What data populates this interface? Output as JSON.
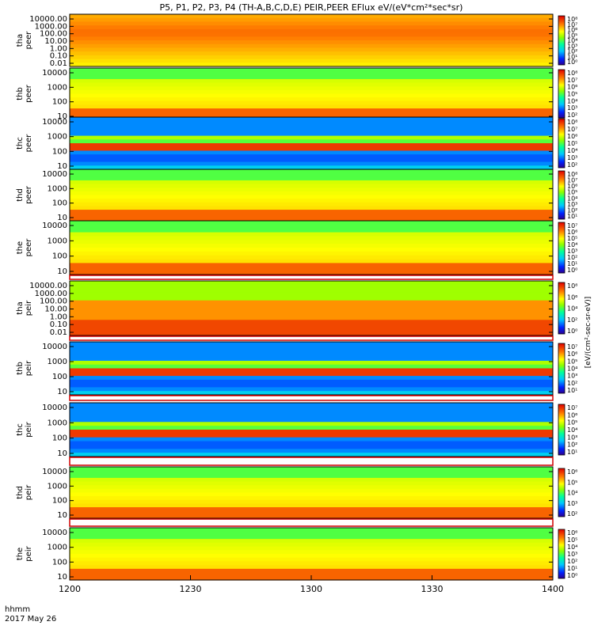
{
  "title": "P5, P1, P2, P3, P4 (TH-A,B,C,D,E) PEIR,PEER EFlux eV/(eV*cm²*sec*sr)",
  "colorbar_label": "[eV/(cm²-sec-sr-eV)]",
  "time_axis": {
    "label": "hhmm",
    "date": "2017 May 26",
    "ticks": [
      "1200",
      "1230",
      "1300",
      "1330",
      "1400"
    ],
    "tick_minutes": [
      0,
      30,
      60,
      90,
      120
    ],
    "range_minutes": [
      0,
      120
    ]
  },
  "chart_data": [
    {
      "type": "heatmap",
      "name": "tha peer",
      "probe": "tha",
      "product": "peer",
      "ylabels": [
        "10000.00",
        "1000.00",
        "100.00",
        "10.00",
        "1.00",
        "0.10",
        "0.01"
      ],
      "cbar": [
        "10⁸",
        "10⁷",
        "10⁶",
        "10⁵",
        "10⁴",
        "10³",
        "10²",
        "10¹",
        "10⁰"
      ],
      "yscale": "log",
      "cmap": "rainbow"
    },
    {
      "type": "heatmap",
      "name": "thb peer",
      "probe": "thb",
      "product": "peer",
      "ylabels": [
        "10000",
        "1000",
        "100",
        "10"
      ],
      "cbar": [
        "10⁸",
        "10⁷",
        "10⁶",
        "10⁵",
        "10⁴",
        "10³",
        "10²"
      ],
      "yscale": "log",
      "cmap": "rainbow"
    },
    {
      "type": "heatmap",
      "name": "thc peer",
      "probe": "thc",
      "product": "peer",
      "ylabels": [
        "10000",
        "1000",
        "100",
        "10"
      ],
      "cbar": [
        "10⁸",
        "10⁷",
        "10⁶",
        "10⁵",
        "10⁴",
        "10³",
        "10²"
      ],
      "yscale": "log",
      "cmap": "rainbow"
    },
    {
      "type": "heatmap",
      "name": "thd peer",
      "probe": "thd",
      "product": "peer",
      "ylabels": [
        "10000",
        "1000",
        "100",
        "10"
      ],
      "cbar": [
        "10⁸",
        "10⁷",
        "10⁶",
        "10⁵",
        "10⁴",
        "10³",
        "10²",
        "10¹"
      ],
      "yscale": "log",
      "cmap": "rainbow"
    },
    {
      "type": "heatmap",
      "name": "the peer",
      "probe": "the",
      "product": "peer",
      "ylabels": [
        "10000",
        "1000",
        "100",
        "10"
      ],
      "cbar": [
        "10⁷",
        "10⁶",
        "10⁵",
        "10⁴",
        "10³",
        "10²",
        "10¹",
        "10⁰"
      ],
      "yscale": "log",
      "cmap": "rainbow"
    },
    {
      "type": "heatmap",
      "name": "tha peir",
      "probe": "tha",
      "product": "peir",
      "ylabels": [
        "10000.00",
        "1000.00",
        "100.00",
        "10.00",
        "1.00",
        "0.10",
        "0.01"
      ],
      "cbar": [
        "10⁸",
        "10⁶",
        "10⁴",
        "10²",
        "10⁰"
      ],
      "yscale": "log",
      "cmap": "rainbow"
    },
    {
      "type": "heatmap",
      "name": "thb peir",
      "probe": "thb",
      "product": "peir",
      "ylabels": [
        "10000",
        "1000",
        "100",
        "10"
      ],
      "cbar": [
        "10⁷",
        "10⁶",
        "10⁵",
        "10⁴",
        "10³",
        "10²",
        "10¹"
      ],
      "yscale": "log",
      "cmap": "rainbow"
    },
    {
      "type": "heatmap",
      "name": "thc peir",
      "probe": "thc",
      "product": "peir",
      "ylabels": [
        "10000",
        "1000",
        "100",
        "10"
      ],
      "cbar": [
        "10⁷",
        "10⁶",
        "10⁵",
        "10⁴",
        "10³",
        "10²",
        "10¹"
      ],
      "yscale": "log",
      "cmap": "rainbow"
    },
    {
      "type": "heatmap",
      "name": "thd peir",
      "probe": "thd",
      "product": "peir",
      "ylabels": [
        "10000",
        "1000",
        "100",
        "10"
      ],
      "cbar": [
        "10⁶",
        "10⁵",
        "10⁴",
        "10³",
        "10²"
      ],
      "yscale": "log",
      "cmap": "rainbow"
    },
    {
      "type": "heatmap",
      "name": "the peir",
      "probe": "the",
      "product": "peir",
      "ylabels": [
        "10000",
        "1000",
        "100",
        "10"
      ],
      "cbar": [
        "10⁶",
        "10⁵",
        "10⁴",
        "10³",
        "10²",
        "10¹",
        "10⁰"
      ],
      "yscale": "log",
      "cmap": "rainbow"
    }
  ]
}
